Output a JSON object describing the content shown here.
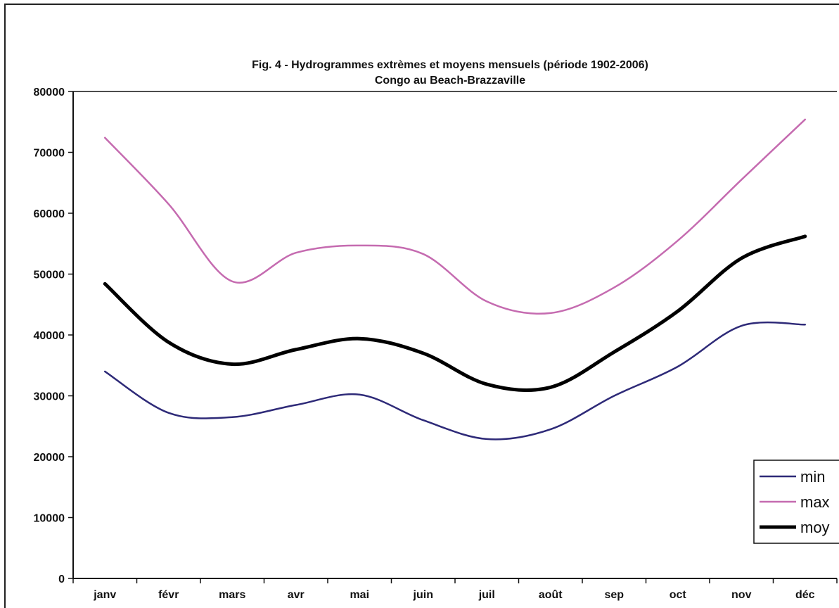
{
  "chart_data": {
    "type": "line",
    "title": "Fig. 4 - Hydrogrammes extrèmes et moyens mensuels (période 1902-2006)",
    "subtitle": "Congo au Beach-Brazzaville",
    "xlabel": "",
    "ylabel": "",
    "categories": [
      "janv",
      "févr",
      "mars",
      "avr",
      "mai",
      "juin",
      "juil",
      "août",
      "sep",
      "oct",
      "nov",
      "déc"
    ],
    "ylim": [
      0,
      80000
    ],
    "yticks": [
      0,
      10000,
      20000,
      30000,
      40000,
      50000,
      60000,
      70000,
      80000
    ],
    "grid": false,
    "legend_position": "right",
    "series": [
      {
        "name": "min",
        "color": "#2e2a78",
        "values": [
          34000,
          27200,
          26500,
          28500,
          30200,
          26000,
          22900,
          24500,
          30000,
          34800,
          41500,
          41700
        ]
      },
      {
        "name": "max",
        "color": "#c56bb0",
        "values": [
          72400,
          61500,
          48800,
          53500,
          54700,
          53300,
          45500,
          43600,
          47800,
          55500,
          65500,
          75400
        ]
      },
      {
        "name": "moy",
        "color": "#000000",
        "values": [
          48400,
          38800,
          35200,
          37600,
          39400,
          37000,
          31900,
          31400,
          37200,
          43900,
          52600,
          56200
        ]
      }
    ]
  }
}
